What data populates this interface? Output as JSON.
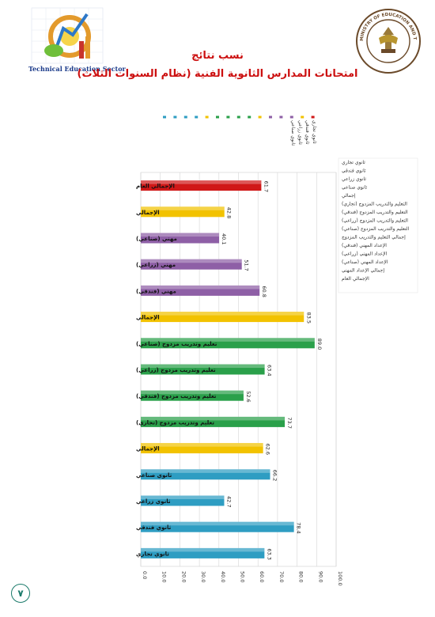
{
  "header": {
    "title_line1": "نسب نتائج",
    "title_line2": "امتحانات المدارس الثانوية الفنية (نظام السنوات الثلاث)",
    "sector_logo_text": "Technical Education Sector",
    "ministry_seal_text": "MINISTRY OF EDUCATION AND TECHNICAL"
  },
  "page_number": "٧",
  "chart_data": {
    "type": "bar",
    "orientation": "horizontal",
    "categories": [
      "الإجمالي العام",
      "الإجمالي",
      "مهني (صناعي)",
      "مهني (زراعي)",
      "مهني (فندقي)",
      "الإجمالي",
      "تعليم وتدريب مزدوج (صناعي)",
      "تعليم وتدريب مزدوج (زراعي)",
      "تعليم وتدريب مزدوج (فندقي)",
      "تعليم وتدريب مزدوج (تجاري)",
      "الإجمالي",
      "ثانوي صناعي",
      "ثانوي زراعي",
      "ثانوي فندقي",
      "ثانوي تجاري"
    ],
    "values": [
      61.7,
      42.8,
      40.1,
      51.7,
      60.8,
      83.5,
      89.0,
      63.4,
      52.6,
      73.7,
      62.6,
      66.2,
      42.7,
      78.4,
      63.3
    ],
    "value_labels": [
      "61.7",
      "42.8",
      "40.1",
      "51.7",
      "60.8",
      "83.5",
      "89.0",
      "63.4",
      "52.6",
      "73.7",
      "62.6",
      "66.2",
      "42.7",
      "78.4",
      "63.3"
    ],
    "colors": [
      "#d01818",
      "#f2c200",
      "#8e5fa6",
      "#8e5fa6",
      "#8e5fa6",
      "#f2c200",
      "#2aa04a",
      "#2aa04a",
      "#2aa04a",
      "#2aa04a",
      "#f2c200",
      "#2e9dc2",
      "#2e9dc2",
      "#2e9dc2",
      "#2e9dc2"
    ],
    "xlim": [
      0,
      100
    ],
    "x_ticks": [
      "0.0",
      "10.0",
      "20.0",
      "30.0",
      "40.0",
      "50.0",
      "60.0",
      "70.0",
      "80.0",
      "90.0",
      "100.0"
    ],
    "grid": true,
    "legend": {
      "placement": "right",
      "entries": [
        "ثانوي تجاري",
        "ثانوي فندقي",
        "ثانوي زراعي",
        "ثانوي صناعي",
        "إجمالي",
        "التعليم والتدريب المزدوج (تجاري)",
        "التعليم والتدريب المزدوج (فندقي)",
        "التعليم والتدريب المزدوج (زراعي)",
        "التعليم والتدريب المزدوج (صناعي)",
        "إجمالي التعليم والتدريب المزدوج",
        "الإعداد المهني (فندقي)",
        "الإعداد المهني (زراعي)",
        "الإعداد المهني (صناعي)",
        "إجمالي الإعداد المهني",
        "الإجمالي العام"
      ],
      "swatch_colors": [
        "#2e9dc2",
        "#2e9dc2",
        "#2e9dc2",
        "#2e9dc2",
        "#f2c200",
        "#2aa04a",
        "#2aa04a",
        "#2aa04a",
        "#2aa04a",
        "#f2c200",
        "#8e5fa6",
        "#8e5fa6",
        "#8e5fa6",
        "#f2c200",
        "#d01818"
      ],
      "top_labels": [
        "ثانوي تجاري",
        "ثانوي فندقي",
        "ثانوي زراعي",
        "ثانوي صناعي"
      ]
    }
  }
}
